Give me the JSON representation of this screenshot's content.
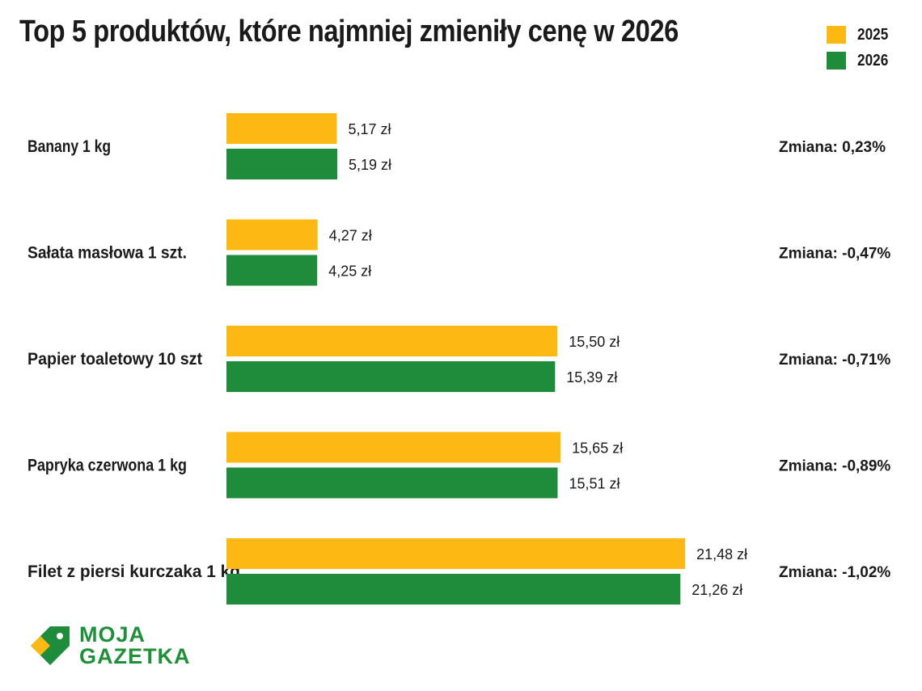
{
  "chart_data": {
    "type": "bar",
    "orientation": "horizontal",
    "title": "Top 5 produktów, które najmniej zmieniły cenę w 2026",
    "categories": [
      "Banany 1 kg",
      "Sałata masłowa 1 szt.",
      "Papier toaletowy 10 szt",
      "Papryka czerwona 1 kg",
      "Filet z piersi kurczaka 1 kg"
    ],
    "series": [
      {
        "name": "2025",
        "color": "#FDB813",
        "values": [
          5.17,
          4.27,
          15.5,
          15.65,
          21.48
        ],
        "labels": [
          "5,17 zł",
          "4,27 zł",
          "15,50 zł",
          "15,65 zł",
          "21,48 zł"
        ]
      },
      {
        "name": "2026",
        "color": "#1E8C3A",
        "values": [
          5.19,
          4.25,
          15.39,
          15.51,
          21.26
        ],
        "labels": [
          "5,19 zł",
          "4,25 zł",
          "15,39 zł",
          "15,51 zł",
          "21,26 zł"
        ]
      }
    ],
    "changes": [
      "Zmiana: 0,23%",
      "Zmiana: -0,47%",
      "Zmiana: -0,71%",
      "Zmiana: -0,89%",
      "Zmiana: -1,02%"
    ],
    "legend_position": "top-right",
    "grid": false
  },
  "logo": {
    "line1": "MOJA",
    "line2": "GAZETKA"
  }
}
